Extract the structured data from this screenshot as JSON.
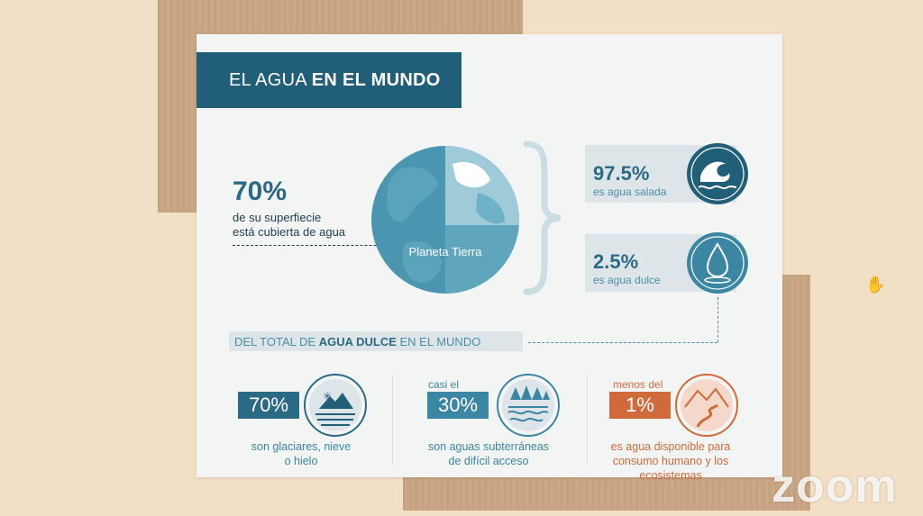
{
  "header": {
    "title_light": "EL AGUA",
    "title_bold": "EN EL MUNDO"
  },
  "earth": {
    "percent": "70%",
    "line1": "de su superfiecie",
    "line2": "está cubierta de agua",
    "planet_label": "Planeta Tierra"
  },
  "salt": {
    "percent": "97.5%",
    "label": "es agua salada"
  },
  "fresh": {
    "percent": "2.5%",
    "label": "es agua dulce"
  },
  "subtitle": {
    "pre": "DEL TOTAL DE",
    "bold": "AGUA DULCE",
    "post": "EN EL MUNDO"
  },
  "stats": [
    {
      "prefix": "",
      "percent": "70%",
      "caption1": "son glaciares, nieve",
      "caption2": "o hielo",
      "caption3": ""
    },
    {
      "prefix": "casi el",
      "percent": "30%",
      "caption1": "son aguas subterráneas",
      "caption2": "de difícil acceso",
      "caption3": ""
    },
    {
      "prefix": "menos del",
      "percent": "1%",
      "caption1": "es agua disponible para",
      "caption2": "consumo humano y los",
      "caption3": "ecosistemas"
    }
  ],
  "watermark": "zoom",
  "colors": {
    "teal_dark": "#215f79",
    "teal": "#3a86a3",
    "teal_light": "#5ea7c0",
    "orange": "#cf6a3b",
    "panel": "#dde5e8"
  },
  "icons": [
    "wave-icon",
    "water-drop-icon",
    "glacier-icon",
    "forest-groundwater-icon",
    "river-mountain-icon",
    "hand-cursor-icon"
  ]
}
